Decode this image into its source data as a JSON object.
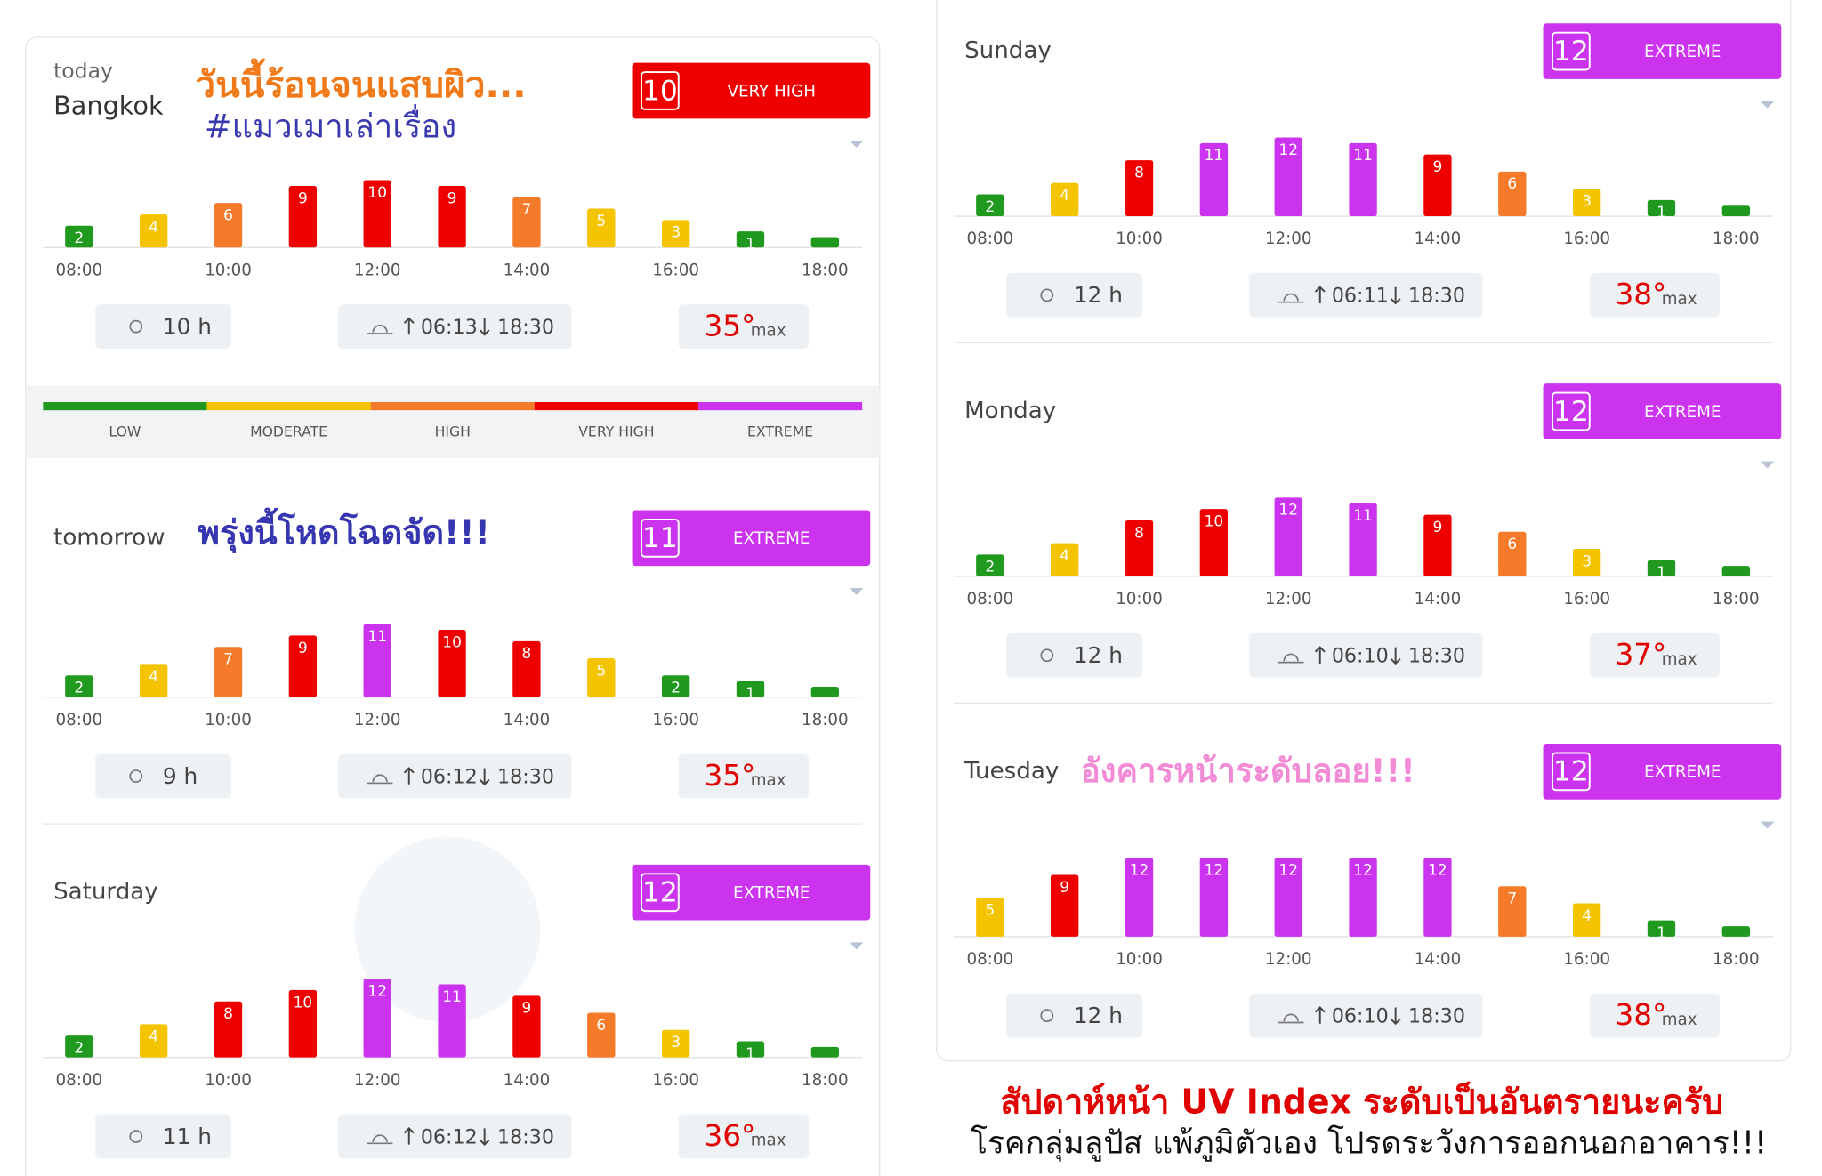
{
  "annotations": {
    "today_title": "วันนี้ร้อนจนแสบผิว...",
    "today_tag": "#แมวเมาเล่าเรื่อง",
    "tomorrow_note": "พรุ่งนี้โหดโฉดจัด!!!",
    "tuesday_note": "อังคารหน้าระดับลอย!!!",
    "footer_warning": "สัปดาห์หน้า UV Index ระดับเป็นอันตรายนะครับ",
    "footer_advice": "โรคกลุ่มลูปัส แพ้ภูมิตัวเอง โปรดระวังการออกนอกอาคาร!!!"
  },
  "scale": {
    "labels": [
      "LOW",
      "MODERATE",
      "HIGH",
      "VERY HIGH",
      "EXTREME"
    ],
    "colors": [
      "#1f9a1f",
      "#f5c400",
      "#f57a2a",
      "#ee0000",
      "#cc33ee"
    ]
  },
  "cards": [
    {
      "day": "today",
      "place": "Bangkok",
      "uv": 10,
      "level": "VERY HIGH",
      "badge_color": "#ee0000",
      "sun_hours": "10 h",
      "sunrise": "06:13",
      "sunset": "18:30",
      "max_temp": "35°",
      "max_label": "max"
    },
    {
      "day": "tomorrow",
      "uv": 11,
      "level": "EXTREME",
      "badge_color": "#cc33ee",
      "sun_hours": "9 h",
      "sunrise": "06:12",
      "sunset": "18:30",
      "max_temp": "35°",
      "max_label": "max"
    },
    {
      "day": "Saturday",
      "uv": 12,
      "level": "EXTREME",
      "badge_color": "#cc33ee",
      "sun_hours": "11 h",
      "sunrise": "06:12",
      "sunset": "18:30",
      "max_temp": "36°",
      "max_label": "max"
    },
    {
      "day": "Sunday",
      "uv": 12,
      "level": "EXTREME",
      "badge_color": "#cc33ee",
      "sun_hours": "12 h",
      "sunrise": "06:11",
      "sunset": "18:30",
      "max_temp": "38°",
      "max_label": "max"
    },
    {
      "day": "Monday",
      "uv": 12,
      "level": "EXTREME",
      "badge_color": "#cc33ee",
      "sun_hours": "12 h",
      "sunrise": "06:10",
      "sunset": "18:30",
      "max_temp": "37°",
      "max_label": "max"
    },
    {
      "day": "Tuesday",
      "uv": 12,
      "level": "EXTREME",
      "badge_color": "#cc33ee",
      "sun_hours": "12 h",
      "sunrise": "06:10",
      "sunset": "18:30",
      "max_temp": "38°",
      "max_label": "max"
    }
  ],
  "chart_data": [
    {
      "type": "bar",
      "categories": [
        "08:00",
        null,
        "10:00",
        null,
        "12:00",
        null,
        "14:00",
        null,
        "16:00",
        null,
        "18:00"
      ],
      "values": [
        2,
        4,
        6,
        9,
        10,
        9,
        7,
        5,
        3,
        1,
        0
      ],
      "colors": [
        "#1f9a1f",
        "#f5c400",
        "#f57a2a",
        "#ee0000",
        "#ee0000",
        "#ee0000",
        "#f57a2a",
        "#f5c400",
        "#f5c400",
        "#1f9a1f",
        "#1f9a1f"
      ]
    },
    {
      "type": "bar",
      "categories": [
        "08:00",
        null,
        "10:00",
        null,
        "12:00",
        null,
        "14:00",
        null,
        "16:00",
        null,
        "18:00"
      ],
      "values": [
        2,
        4,
        7,
        9,
        11,
        10,
        8,
        5,
        2,
        1,
        0
      ],
      "colors": [
        "#1f9a1f",
        "#f5c400",
        "#f57a2a",
        "#ee0000",
        "#cc33ee",
        "#ee0000",
        "#ee0000",
        "#f5c400",
        "#1f9a1f",
        "#1f9a1f",
        "#1f9a1f"
      ]
    },
    {
      "type": "bar",
      "categories": [
        "08:00",
        null,
        "10:00",
        null,
        "12:00",
        null,
        "14:00",
        null,
        "16:00",
        null,
        "18:00"
      ],
      "values": [
        2,
        4,
        8,
        10,
        12,
        11,
        9,
        6,
        3,
        1,
        0
      ],
      "colors": [
        "#1f9a1f",
        "#f5c400",
        "#ee0000",
        "#ee0000",
        "#cc33ee",
        "#cc33ee",
        "#ee0000",
        "#f57a2a",
        "#f5c400",
        "#1f9a1f",
        "#1f9a1f"
      ]
    },
    {
      "type": "bar",
      "categories": [
        "08:00",
        null,
        "10:00",
        null,
        "12:00",
        null,
        "14:00",
        null,
        "16:00",
        null,
        "18:00"
      ],
      "values": [
        2,
        4,
        8,
        11,
        12,
        11,
        9,
        6,
        3,
        1,
        0
      ],
      "colors": [
        "#1f9a1f",
        "#f5c400",
        "#ee0000",
        "#cc33ee",
        "#cc33ee",
        "#cc33ee",
        "#ee0000",
        "#f57a2a",
        "#f5c400",
        "#1f9a1f",
        "#1f9a1f"
      ]
    },
    {
      "type": "bar",
      "categories": [
        "08:00",
        null,
        "10:00",
        null,
        "12:00",
        null,
        "14:00",
        null,
        "16:00",
        null,
        "18:00"
      ],
      "values": [
        2,
        4,
        8,
        10,
        12,
        11,
        9,
        6,
        3,
        1,
        0
      ],
      "colors": [
        "#1f9a1f",
        "#f5c400",
        "#ee0000",
        "#ee0000",
        "#cc33ee",
        "#cc33ee",
        "#ee0000",
        "#f57a2a",
        "#f5c400",
        "#1f9a1f",
        "#1f9a1f"
      ]
    },
    {
      "type": "bar",
      "categories": [
        "08:00",
        null,
        "10:00",
        null,
        "12:00",
        null,
        "14:00",
        null,
        "16:00",
        null,
        "18:00"
      ],
      "values": [
        5,
        9,
        12,
        12,
        12,
        12,
        12,
        7,
        4,
        1,
        0
      ],
      "colors": [
        "#f5c400",
        "#ee0000",
        "#cc33ee",
        "#cc33ee",
        "#cc33ee",
        "#cc33ee",
        "#cc33ee",
        "#f57a2a",
        "#f5c400",
        "#1f9a1f",
        "#1f9a1f"
      ]
    }
  ]
}
